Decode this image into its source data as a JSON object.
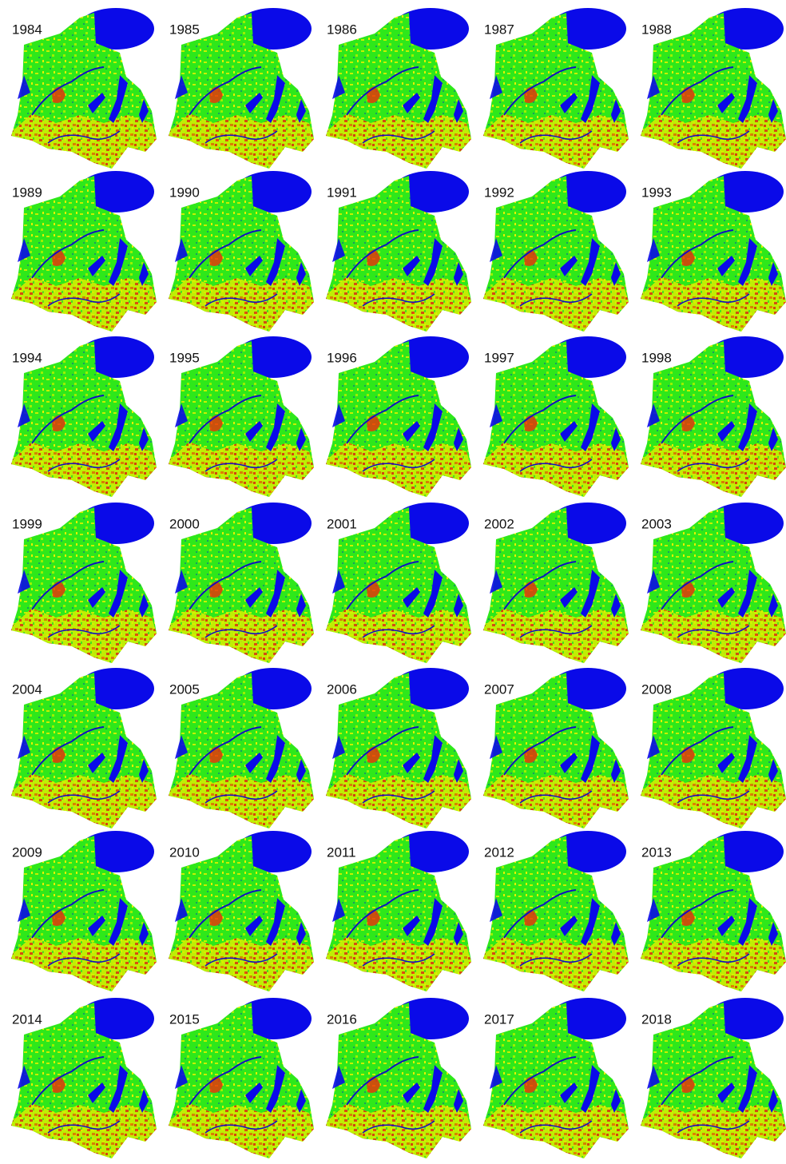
{
  "panels": [
    {
      "year": "1984"
    },
    {
      "year": "1985"
    },
    {
      "year": "1986"
    },
    {
      "year": "1987"
    },
    {
      "year": "1988"
    },
    {
      "year": "1989"
    },
    {
      "year": "1990"
    },
    {
      "year": "1991"
    },
    {
      "year": "1992"
    },
    {
      "year": "1993"
    },
    {
      "year": "1994"
    },
    {
      "year": "1995"
    },
    {
      "year": "1996"
    },
    {
      "year": "1997"
    },
    {
      "year": "1998"
    },
    {
      "year": "1999"
    },
    {
      "year": "2000"
    },
    {
      "year": "2001"
    },
    {
      "year": "2002"
    },
    {
      "year": "2003"
    },
    {
      "year": "2004"
    },
    {
      "year": "2005"
    },
    {
      "year": "2006"
    },
    {
      "year": "2007"
    },
    {
      "year": "2008"
    },
    {
      "year": "2009"
    },
    {
      "year": "2010"
    },
    {
      "year": "2011"
    },
    {
      "year": "2012"
    },
    {
      "year": "2013"
    },
    {
      "year": "2014"
    },
    {
      "year": "2015"
    },
    {
      "year": "2016"
    },
    {
      "year": "2017"
    },
    {
      "year": "2018"
    }
  ]
}
